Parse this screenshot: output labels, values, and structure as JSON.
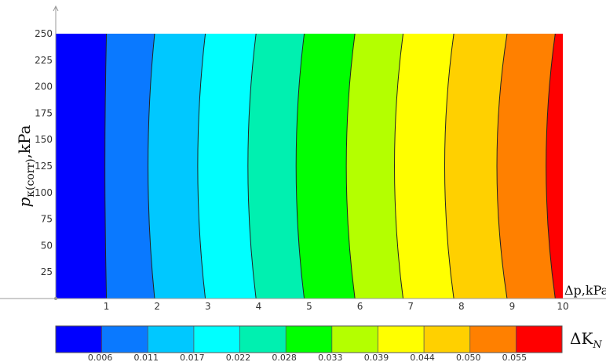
{
  "chart_data": {
    "type": "contour",
    "title": "",
    "xlabel": "Δp,kPa",
    "ylabel": "p_к(corr),kPa",
    "ylabel_main": "p",
    "ylabel_sub": "к(corr)",
    "ylabel_tail": ",kPa",
    "xlim": [
      0,
      10
    ],
    "ylim": [
      0,
      250
    ],
    "x_ticks": [
      "1",
      "2",
      "3",
      "4",
      "5",
      "6",
      "7",
      "8",
      "9",
      "10"
    ],
    "y_ticks": [
      "25",
      "50",
      "75",
      "100",
      "125",
      "150",
      "175",
      "200",
      "225",
      "250"
    ],
    "x_tick_values": [
      1,
      2,
      3,
      4,
      5,
      6,
      7,
      8,
      9,
      10
    ],
    "y_tick_values": [
      25,
      50,
      75,
      100,
      125,
      150,
      175,
      200,
      225,
      250
    ],
    "colorbar": {
      "label": "ΔK_N",
      "label_main": "ΔK",
      "label_sub": "N",
      "ticks": [
        "0.006",
        "0.011",
        "0.017",
        "0.022",
        "0.028",
        "0.033",
        "0.039",
        "0.044",
        "0.050",
        "0.055"
      ],
      "colors": [
        "#0000ff",
        "#0a79ff",
        "#00c8ff",
        "#00ffff",
        "#00f0b0",
        "#00ff00",
        "#b4ff00",
        "#ffff00",
        "#ffd000",
        "#ff8000",
        "#ff0000"
      ]
    },
    "contour_lines": [
      {
        "level": "0.006",
        "points": [
          [
            1.0,
            0
          ],
          [
            0.97,
            125
          ],
          [
            1.0,
            250
          ]
        ]
      },
      {
        "level": "0.011",
        "points": [
          [
            1.95,
            0
          ],
          [
            1.82,
            125
          ],
          [
            1.95,
            250
          ]
        ]
      },
      {
        "level": "0.017",
        "points": [
          [
            2.95,
            0
          ],
          [
            2.8,
            125
          ],
          [
            2.95,
            250
          ]
        ]
      },
      {
        "level": "0.022",
        "points": [
          [
            3.95,
            0
          ],
          [
            3.79,
            125
          ],
          [
            3.95,
            250
          ]
        ]
      },
      {
        "level": "0.028",
        "points": [
          [
            4.9,
            0
          ],
          [
            4.74,
            125
          ],
          [
            4.9,
            250
          ]
        ]
      },
      {
        "level": "0.033",
        "points": [
          [
            5.9,
            0
          ],
          [
            5.73,
            125
          ],
          [
            5.9,
            250
          ]
        ]
      },
      {
        "level": "0.039",
        "points": [
          [
            6.85,
            0
          ],
          [
            6.68,
            125
          ],
          [
            6.85,
            250
          ]
        ]
      },
      {
        "level": "0.044",
        "points": [
          [
            7.85,
            0
          ],
          [
            7.67,
            125
          ],
          [
            7.85,
            250
          ]
        ]
      },
      {
        "level": "0.050",
        "points": [
          [
            8.9,
            0
          ],
          [
            8.7,
            125
          ],
          [
            8.9,
            250
          ]
        ]
      },
      {
        "level": "0.055",
        "points": [
          [
            9.85,
            0
          ],
          [
            9.67,
            125
          ],
          [
            9.85,
            250
          ]
        ]
      }
    ]
  }
}
